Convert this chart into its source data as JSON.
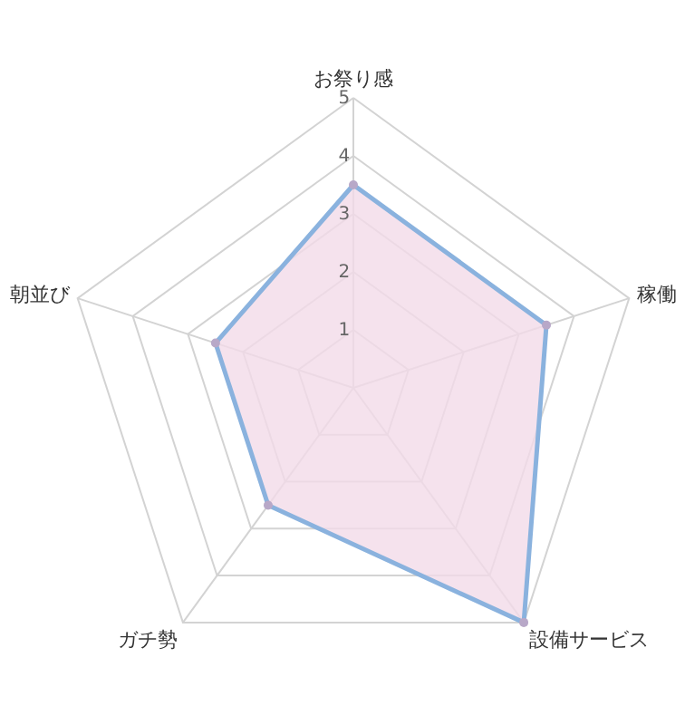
{
  "chart_data": {
    "type": "radar",
    "categories": [
      "お祭り感",
      "稼働",
      "設備サービス",
      "ガチ勢",
      "朝並び"
    ],
    "series": [
      {
        "color": "#8ab2de",
        "values": [
          3.5,
          3.5,
          5,
          2.5,
          2.5
        ]
      }
    ],
    "ylim": [
      0,
      5
    ],
    "yticks": [
      1,
      2,
      3,
      4,
      5
    ],
    "grid": true,
    "marker": "circle"
  }
}
